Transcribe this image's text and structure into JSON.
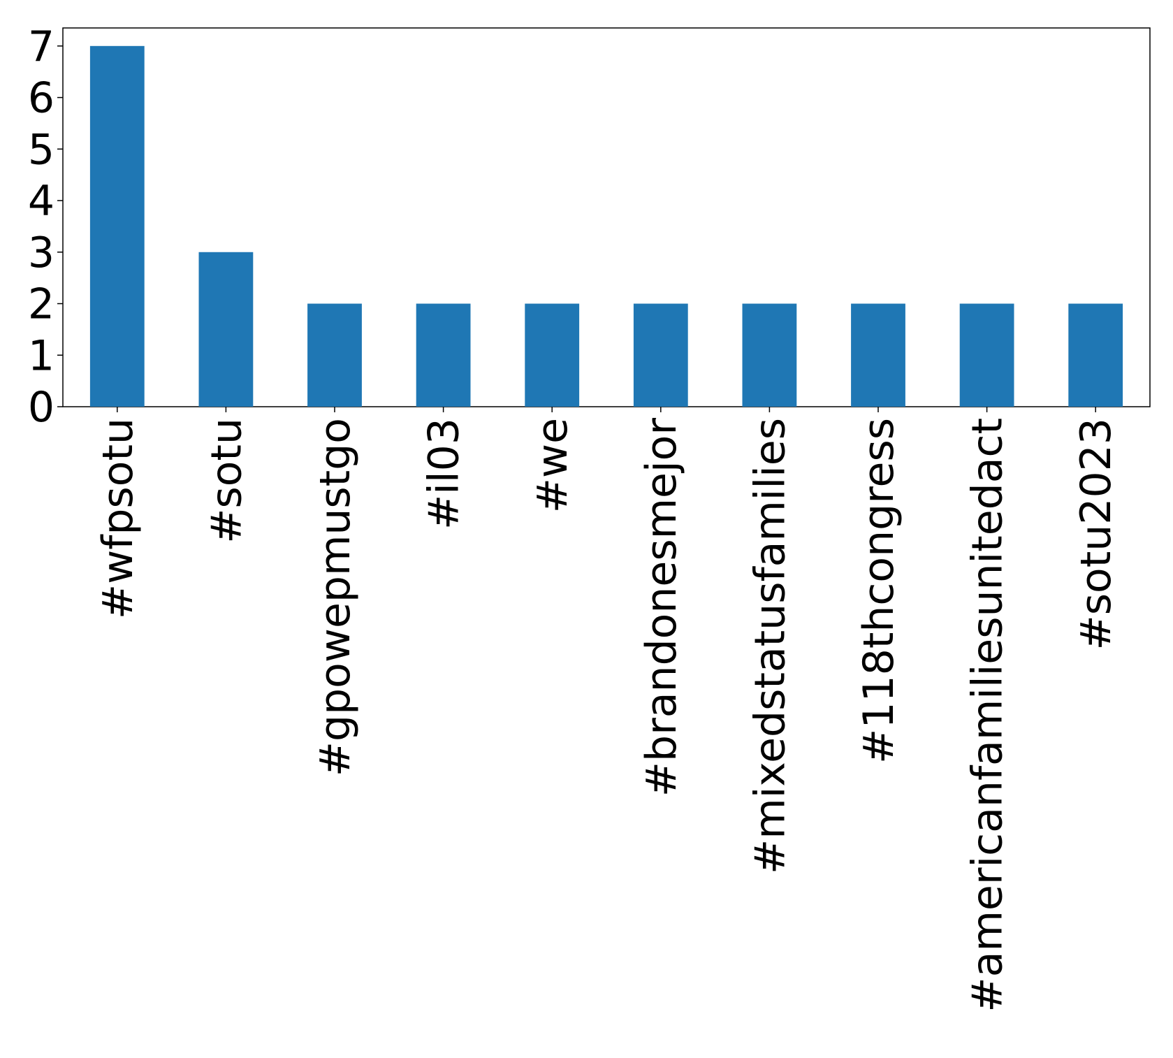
{
  "chart_data": {
    "type": "bar",
    "categories": [
      "#wfpsotu",
      "#sotu",
      "#gpowepmustgo",
      "#il03",
      "#we",
      "#brandonesmejor",
      "#mixedstatusfamilies",
      "#118thcongress",
      "#americanfamiliesunitedact",
      "#sotu2023"
    ],
    "values": [
      7,
      3,
      2,
      2,
      2,
      2,
      2,
      2,
      2,
      2
    ],
    "color": "#1f77b4",
    "ylim": [
      0,
      7.35
    ],
    "yticks": [
      0,
      1,
      2,
      3,
      4,
      5,
      6,
      7
    ],
    "grid": false
  }
}
